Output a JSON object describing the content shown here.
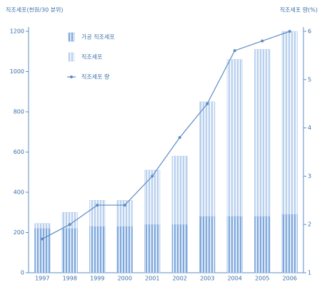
{
  "chart_data": {
    "type": "bar",
    "title": "직조세포(천원/30 분위)",
    "y2_title": "직조세포 량(%)",
    "categories": [
      "1997",
      "1998",
      "1999",
      "2000",
      "2001",
      "2002",
      "2003",
      "2004",
      "2005",
      "2006"
    ],
    "series": [
      {
        "name": "가공 직조세포",
        "color": "#7fa8dc",
        "values": [
          220,
          220,
          230,
          230,
          240,
          240,
          280,
          280,
          280,
          290
        ]
      },
      {
        "name": "직조세포",
        "color": "#b9d0ee",
        "values": [
          25,
          80,
          130,
          130,
          270,
          340,
          570,
          780,
          830,
          910
        ]
      },
      {
        "name": "직조세포 량",
        "color": "#5b8cc4",
        "axis": "y2",
        "type": "line",
        "values": [
          1.7,
          2.0,
          2.4,
          2.4,
          3.0,
          3.8,
          4.5,
          5.6,
          5.8,
          6.0
        ]
      }
    ],
    "ylim": [
      0,
      1200
    ],
    "yticks": [
      0,
      200,
      400,
      600,
      800,
      1000,
      1200
    ],
    "y2lim": [
      1,
      6
    ],
    "y2ticks": [
      1,
      2,
      3,
      4,
      5,
      6
    ],
    "stacked": true,
    "legend": "upper left"
  }
}
